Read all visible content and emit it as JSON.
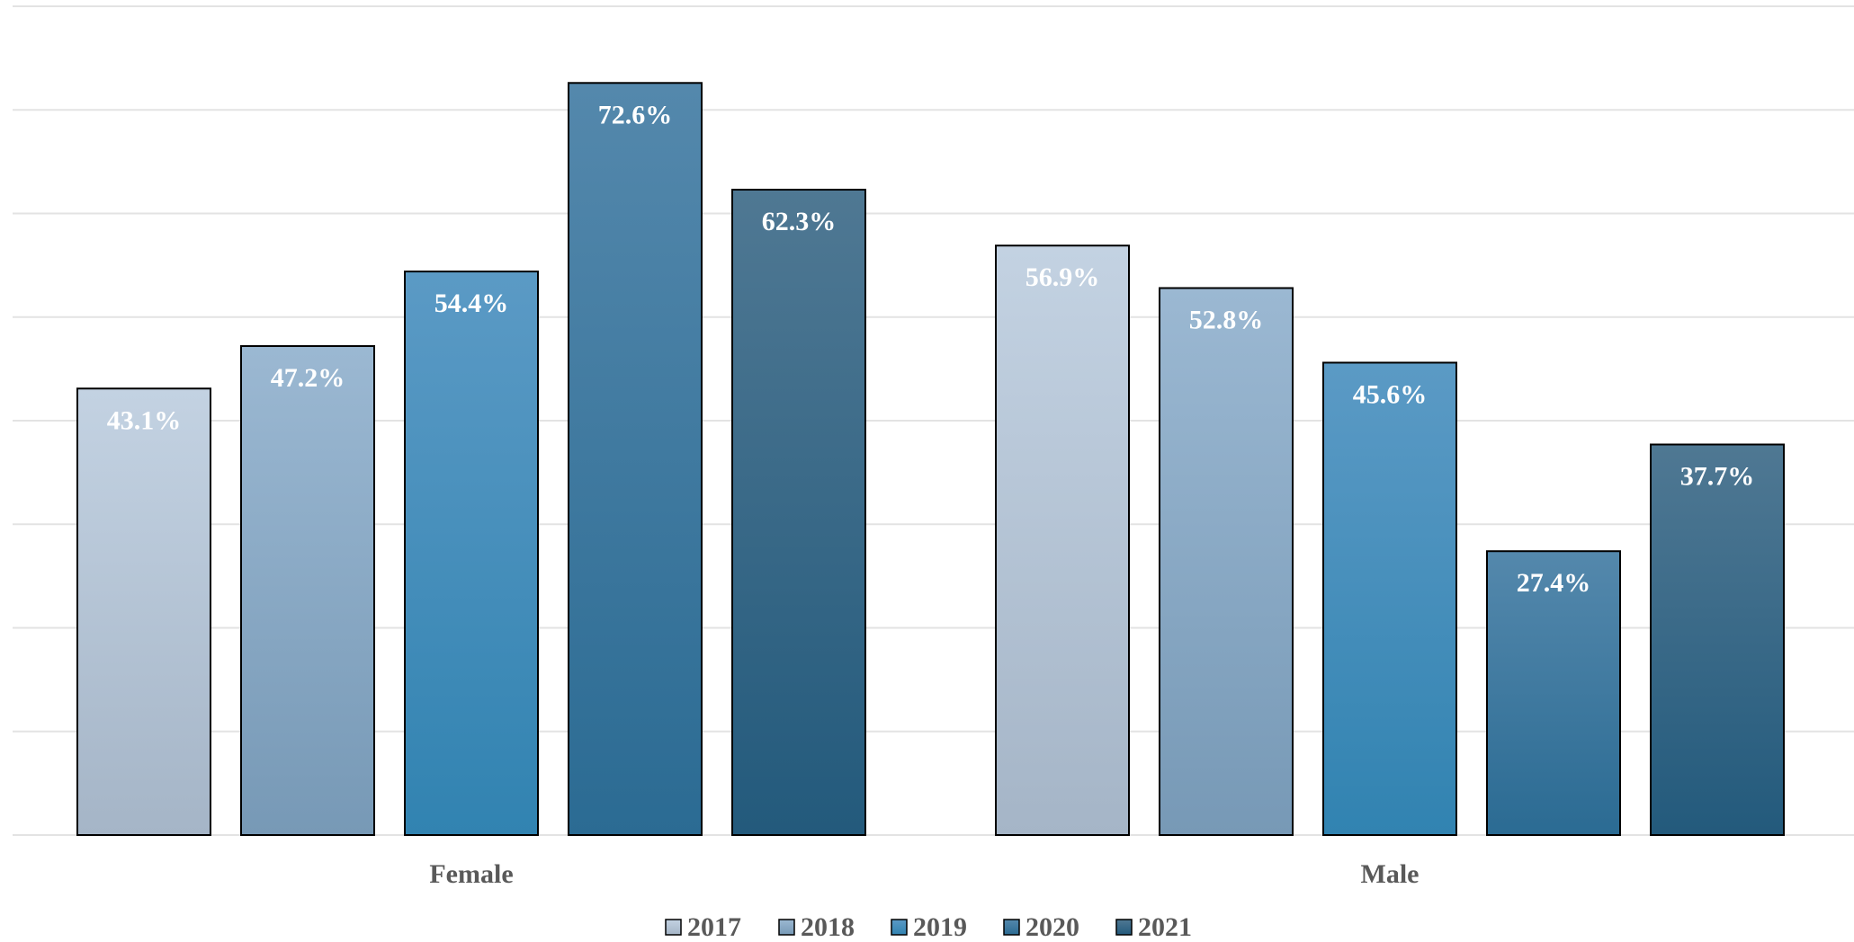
{
  "chart_data": {
    "type": "bar",
    "categories": [
      "Female",
      "Male"
    ],
    "series": [
      {
        "name": "2017",
        "values": [
          43.1,
          56.9
        ],
        "labels": [
          "43.1%",
          "56.9%"
        ]
      },
      {
        "name": "2018",
        "values": [
          47.2,
          52.8
        ],
        "labels": [
          "47.2%",
          "52.8%"
        ]
      },
      {
        "name": "2019",
        "values": [
          54.4,
          45.6
        ],
        "labels": [
          "54.4%",
          "45.6%"
        ]
      },
      {
        "name": "2020",
        "values": [
          72.6,
          27.4
        ],
        "labels": [
          "72.6%",
          "27.4%"
        ]
      },
      {
        "name": "2021",
        "values": [
          62.3,
          37.7
        ],
        "labels": [
          "62.3%",
          "37.7%"
        ]
      }
    ],
    "ylim": [
      0,
      80
    ],
    "gridlines": true,
    "legend": "bottom",
    "series_colors": [
      {
        "top": "#c3d2e2",
        "bottom": "#a5b5c7"
      },
      {
        "top": "#9bb8d2",
        "bottom": "#7799b6"
      },
      {
        "top": "#5b9ac5",
        "bottom": "#3183b1"
      },
      {
        "top": "#5488ac",
        "bottom": "#2b6b93"
      },
      {
        "top": "#4f7893",
        "bottom": "#235a7c"
      }
    ]
  }
}
